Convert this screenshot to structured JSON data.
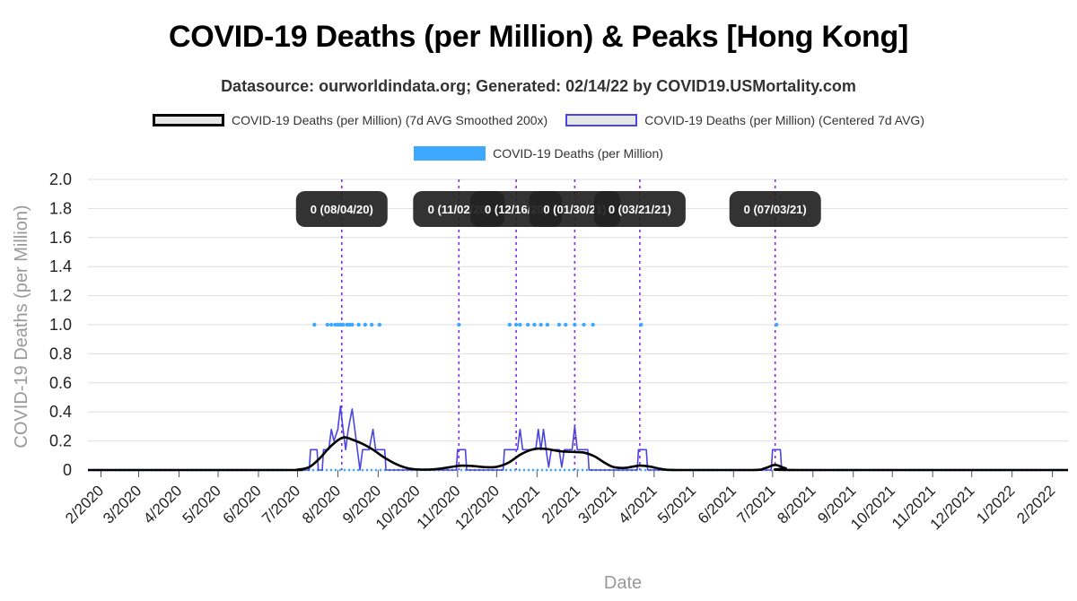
{
  "chart_data": {
    "type": "line",
    "title": "COVID-19 Deaths (per Million) & Peaks [Hong Kong]",
    "subtitle": "Datasource: ourworldindata.org; Generated: 02/14/22 by COVID19.USMortality.com",
    "xlabel": "Date",
    "ylabel": "COVID-19 Deaths (per Million)",
    "ylim": [
      0,
      2.0
    ],
    "y_ticks": [
      "0",
      "0.2",
      "0.4",
      "0.6",
      "0.8",
      "1.0",
      "1.2",
      "1.4",
      "1.6",
      "1.8",
      "2.0"
    ],
    "xlim": [
      "2020-01-22",
      "2022-02-13"
    ],
    "x_ticks": [
      {
        "label": "2/2020",
        "date": "2020-02-01"
      },
      {
        "label": "3/2020",
        "date": "2020-03-01"
      },
      {
        "label": "4/2020",
        "date": "2020-04-01"
      },
      {
        "label": "5/2020",
        "date": "2020-05-01"
      },
      {
        "label": "6/2020",
        "date": "2020-06-01"
      },
      {
        "label": "7/2020",
        "date": "2020-07-01"
      },
      {
        "label": "8/2020",
        "date": "2020-08-01"
      },
      {
        "label": "9/2020",
        "date": "2020-09-01"
      },
      {
        "label": "10/2020",
        "date": "2020-10-01"
      },
      {
        "label": "11/2020",
        "date": "2020-11-01"
      },
      {
        "label": "12/2020",
        "date": "2020-12-01"
      },
      {
        "label": "1/2021",
        "date": "2021-01-01"
      },
      {
        "label": "2/2021",
        "date": "2021-02-01"
      },
      {
        "label": "3/2021",
        "date": "2021-03-01"
      },
      {
        "label": "4/2021",
        "date": "2021-04-01"
      },
      {
        "label": "5/2021",
        "date": "2021-05-01"
      },
      {
        "label": "6/2021",
        "date": "2021-06-01"
      },
      {
        "label": "7/2021",
        "date": "2021-07-01"
      },
      {
        "label": "8/2021",
        "date": "2021-08-01"
      },
      {
        "label": "9/2021",
        "date": "2021-09-01"
      },
      {
        "label": "10/2021",
        "date": "2021-10-01"
      },
      {
        "label": "11/2021",
        "date": "2021-11-01"
      },
      {
        "label": "12/2021",
        "date": "2021-12-01"
      },
      {
        "label": "1/2022",
        "date": "2022-01-01"
      },
      {
        "label": "2/2022",
        "date": "2022-02-01"
      }
    ],
    "grid": true,
    "legend_position": "top",
    "series": [
      {
        "name": "COVID-19 Deaths (per Million) (7d AVG Smoothed 200x)",
        "color": "#000000",
        "points": [
          [
            "2020-01-22",
            0
          ],
          [
            "2020-06-20",
            0
          ],
          [
            "2020-07-01",
            0.003
          ],
          [
            "2020-07-10",
            0.02
          ],
          [
            "2020-07-18",
            0.08
          ],
          [
            "2020-07-25",
            0.15
          ],
          [
            "2020-08-01",
            0.205
          ],
          [
            "2020-08-06",
            0.225
          ],
          [
            "2020-08-12",
            0.21
          ],
          [
            "2020-08-20",
            0.18
          ],
          [
            "2020-08-28",
            0.14
          ],
          [
            "2020-09-05",
            0.09
          ],
          [
            "2020-09-15",
            0.04
          ],
          [
            "2020-09-25",
            0.01
          ],
          [
            "2020-10-05",
            0.003
          ],
          [
            "2020-10-15",
            0.006
          ],
          [
            "2020-10-25",
            0.018
          ],
          [
            "2020-11-03",
            0.03
          ],
          [
            "2020-11-12",
            0.028
          ],
          [
            "2020-11-22",
            0.02
          ],
          [
            "2020-12-01",
            0.022
          ],
          [
            "2020-12-10",
            0.05
          ],
          [
            "2020-12-20",
            0.11
          ],
          [
            "2020-12-30",
            0.145
          ],
          [
            "2021-01-08",
            0.145
          ],
          [
            "2021-01-18",
            0.13
          ],
          [
            "2021-01-28",
            0.125
          ],
          [
            "2021-02-06",
            0.12
          ],
          [
            "2021-02-14",
            0.095
          ],
          [
            "2021-02-22",
            0.05
          ],
          [
            "2021-03-01",
            0.02
          ],
          [
            "2021-03-10",
            0.015
          ],
          [
            "2021-03-20",
            0.03
          ],
          [
            "2021-03-28",
            0.025
          ],
          [
            "2021-04-08",
            0.005
          ],
          [
            "2021-04-20",
            0
          ],
          [
            "2021-06-15",
            0
          ],
          [
            "2021-06-25",
            0.012
          ],
          [
            "2021-07-03",
            0.035
          ],
          [
            "2021-07-11",
            0.012
          ],
          [
            "2021-07-21",
            0
          ],
          [
            "2022-02-13",
            0
          ]
        ]
      },
      {
        "name": "COVID-19 Deaths (per Million) (Centered 7d AVG)",
        "color": "#4b45e0",
        "points": [
          [
            "2020-01-22",
            0
          ],
          [
            "2020-07-10",
            0
          ],
          [
            "2020-07-11",
            0.14
          ],
          [
            "2020-07-16",
            0.14
          ],
          [
            "2020-07-17",
            0
          ],
          [
            "2020-07-20",
            0
          ],
          [
            "2020-07-21",
            0.14
          ],
          [
            "2020-07-25",
            0.14
          ],
          [
            "2020-07-27",
            0.28
          ],
          [
            "2020-07-29",
            0.2
          ],
          [
            "2020-08-01",
            0.28
          ],
          [
            "2020-08-03",
            0.44
          ],
          [
            "2020-08-05",
            0.28
          ],
          [
            "2020-08-07",
            0.14
          ],
          [
            "2020-08-09",
            0.28
          ],
          [
            "2020-08-12",
            0.42
          ],
          [
            "2020-08-14",
            0.28
          ],
          [
            "2020-08-16",
            0.14
          ],
          [
            "2020-08-18",
            0
          ],
          [
            "2020-08-20",
            0.14
          ],
          [
            "2020-08-25",
            0.14
          ],
          [
            "2020-08-28",
            0.28
          ],
          [
            "2020-08-30",
            0.14
          ],
          [
            "2020-09-06",
            0.14
          ],
          [
            "2020-09-07",
            0
          ],
          [
            "2020-10-31",
            0
          ],
          [
            "2020-11-01",
            0.14
          ],
          [
            "2020-11-07",
            0.14
          ],
          [
            "2020-11-08",
            0
          ],
          [
            "2020-12-06",
            0
          ],
          [
            "2020-12-07",
            0.14
          ],
          [
            "2020-12-17",
            0.14
          ],
          [
            "2020-12-19",
            0.28
          ],
          [
            "2020-12-21",
            0.14
          ],
          [
            "2020-12-31",
            0.14
          ],
          [
            "2021-01-02",
            0.28
          ],
          [
            "2021-01-04",
            0.14
          ],
          [
            "2021-01-06",
            0.28
          ],
          [
            "2021-01-08",
            0.14
          ],
          [
            "2021-01-10",
            0.02
          ],
          [
            "2021-01-12",
            0.14
          ],
          [
            "2021-01-18",
            0.14
          ],
          [
            "2021-01-20",
            0.02
          ],
          [
            "2021-01-22",
            0.14
          ],
          [
            "2021-01-28",
            0.14
          ],
          [
            "2021-01-30",
            0.3
          ],
          [
            "2021-02-01",
            0.14
          ],
          [
            "2021-02-09",
            0.14
          ],
          [
            "2021-02-10",
            0
          ],
          [
            "2021-03-19",
            0
          ],
          [
            "2021-03-20",
            0.14
          ],
          [
            "2021-03-26",
            0.14
          ],
          [
            "2021-03-27",
            0
          ],
          [
            "2021-06-30",
            0
          ],
          [
            "2021-07-01",
            0.14
          ],
          [
            "2021-07-07",
            0.14
          ],
          [
            "2021-07-08",
            0
          ],
          [
            "2022-02-13",
            0
          ]
        ]
      },
      {
        "name": "COVID-19 Deaths (per Million)",
        "color": "#3ea8ff",
        "style": "points",
        "points": [
          [
            "2020-07-14",
            1
          ],
          [
            "2020-07-24",
            1
          ],
          [
            "2020-07-27",
            1
          ],
          [
            "2020-07-30",
            1
          ],
          [
            "2020-08-01",
            1
          ],
          [
            "2020-08-03",
            1
          ],
          [
            "2020-08-05",
            1
          ],
          [
            "2020-08-08",
            1
          ],
          [
            "2020-08-10",
            1
          ],
          [
            "2020-08-12",
            1
          ],
          [
            "2020-08-17",
            1
          ],
          [
            "2020-08-22",
            1
          ],
          [
            "2020-08-27",
            1
          ],
          [
            "2020-09-02",
            1
          ],
          [
            "2020-11-02",
            1
          ],
          [
            "2020-12-11",
            1
          ],
          [
            "2020-12-16",
            1
          ],
          [
            "2020-12-19",
            1
          ],
          [
            "2020-12-25",
            1
          ],
          [
            "2020-12-30",
            1
          ],
          [
            "2021-01-04",
            1
          ],
          [
            "2021-01-09",
            1
          ],
          [
            "2021-01-18",
            1
          ],
          [
            "2021-01-23",
            1
          ],
          [
            "2021-01-30",
            1
          ],
          [
            "2021-02-06",
            1
          ],
          [
            "2021-02-13",
            1
          ],
          [
            "2021-03-22",
            1
          ],
          [
            "2021-07-04",
            1
          ]
        ]
      }
    ],
    "peaks": [
      {
        "label": "0 (08/04/20)",
        "date": "2020-08-04"
      },
      {
        "label": "0 (11/02/20)",
        "date": "2020-11-02"
      },
      {
        "label": "0 (12/16/20)",
        "date": "2020-12-16"
      },
      {
        "label": "0 (01/30/21)",
        "date": "2021-01-30"
      },
      {
        "label": "0 (03/21/21)",
        "date": "2021-03-21"
      },
      {
        "label": "0 (07/03/21)",
        "date": "2021-07-03"
      }
    ],
    "peak_line_color": "#8a2be2",
    "peak_label_bg": "#222222"
  }
}
